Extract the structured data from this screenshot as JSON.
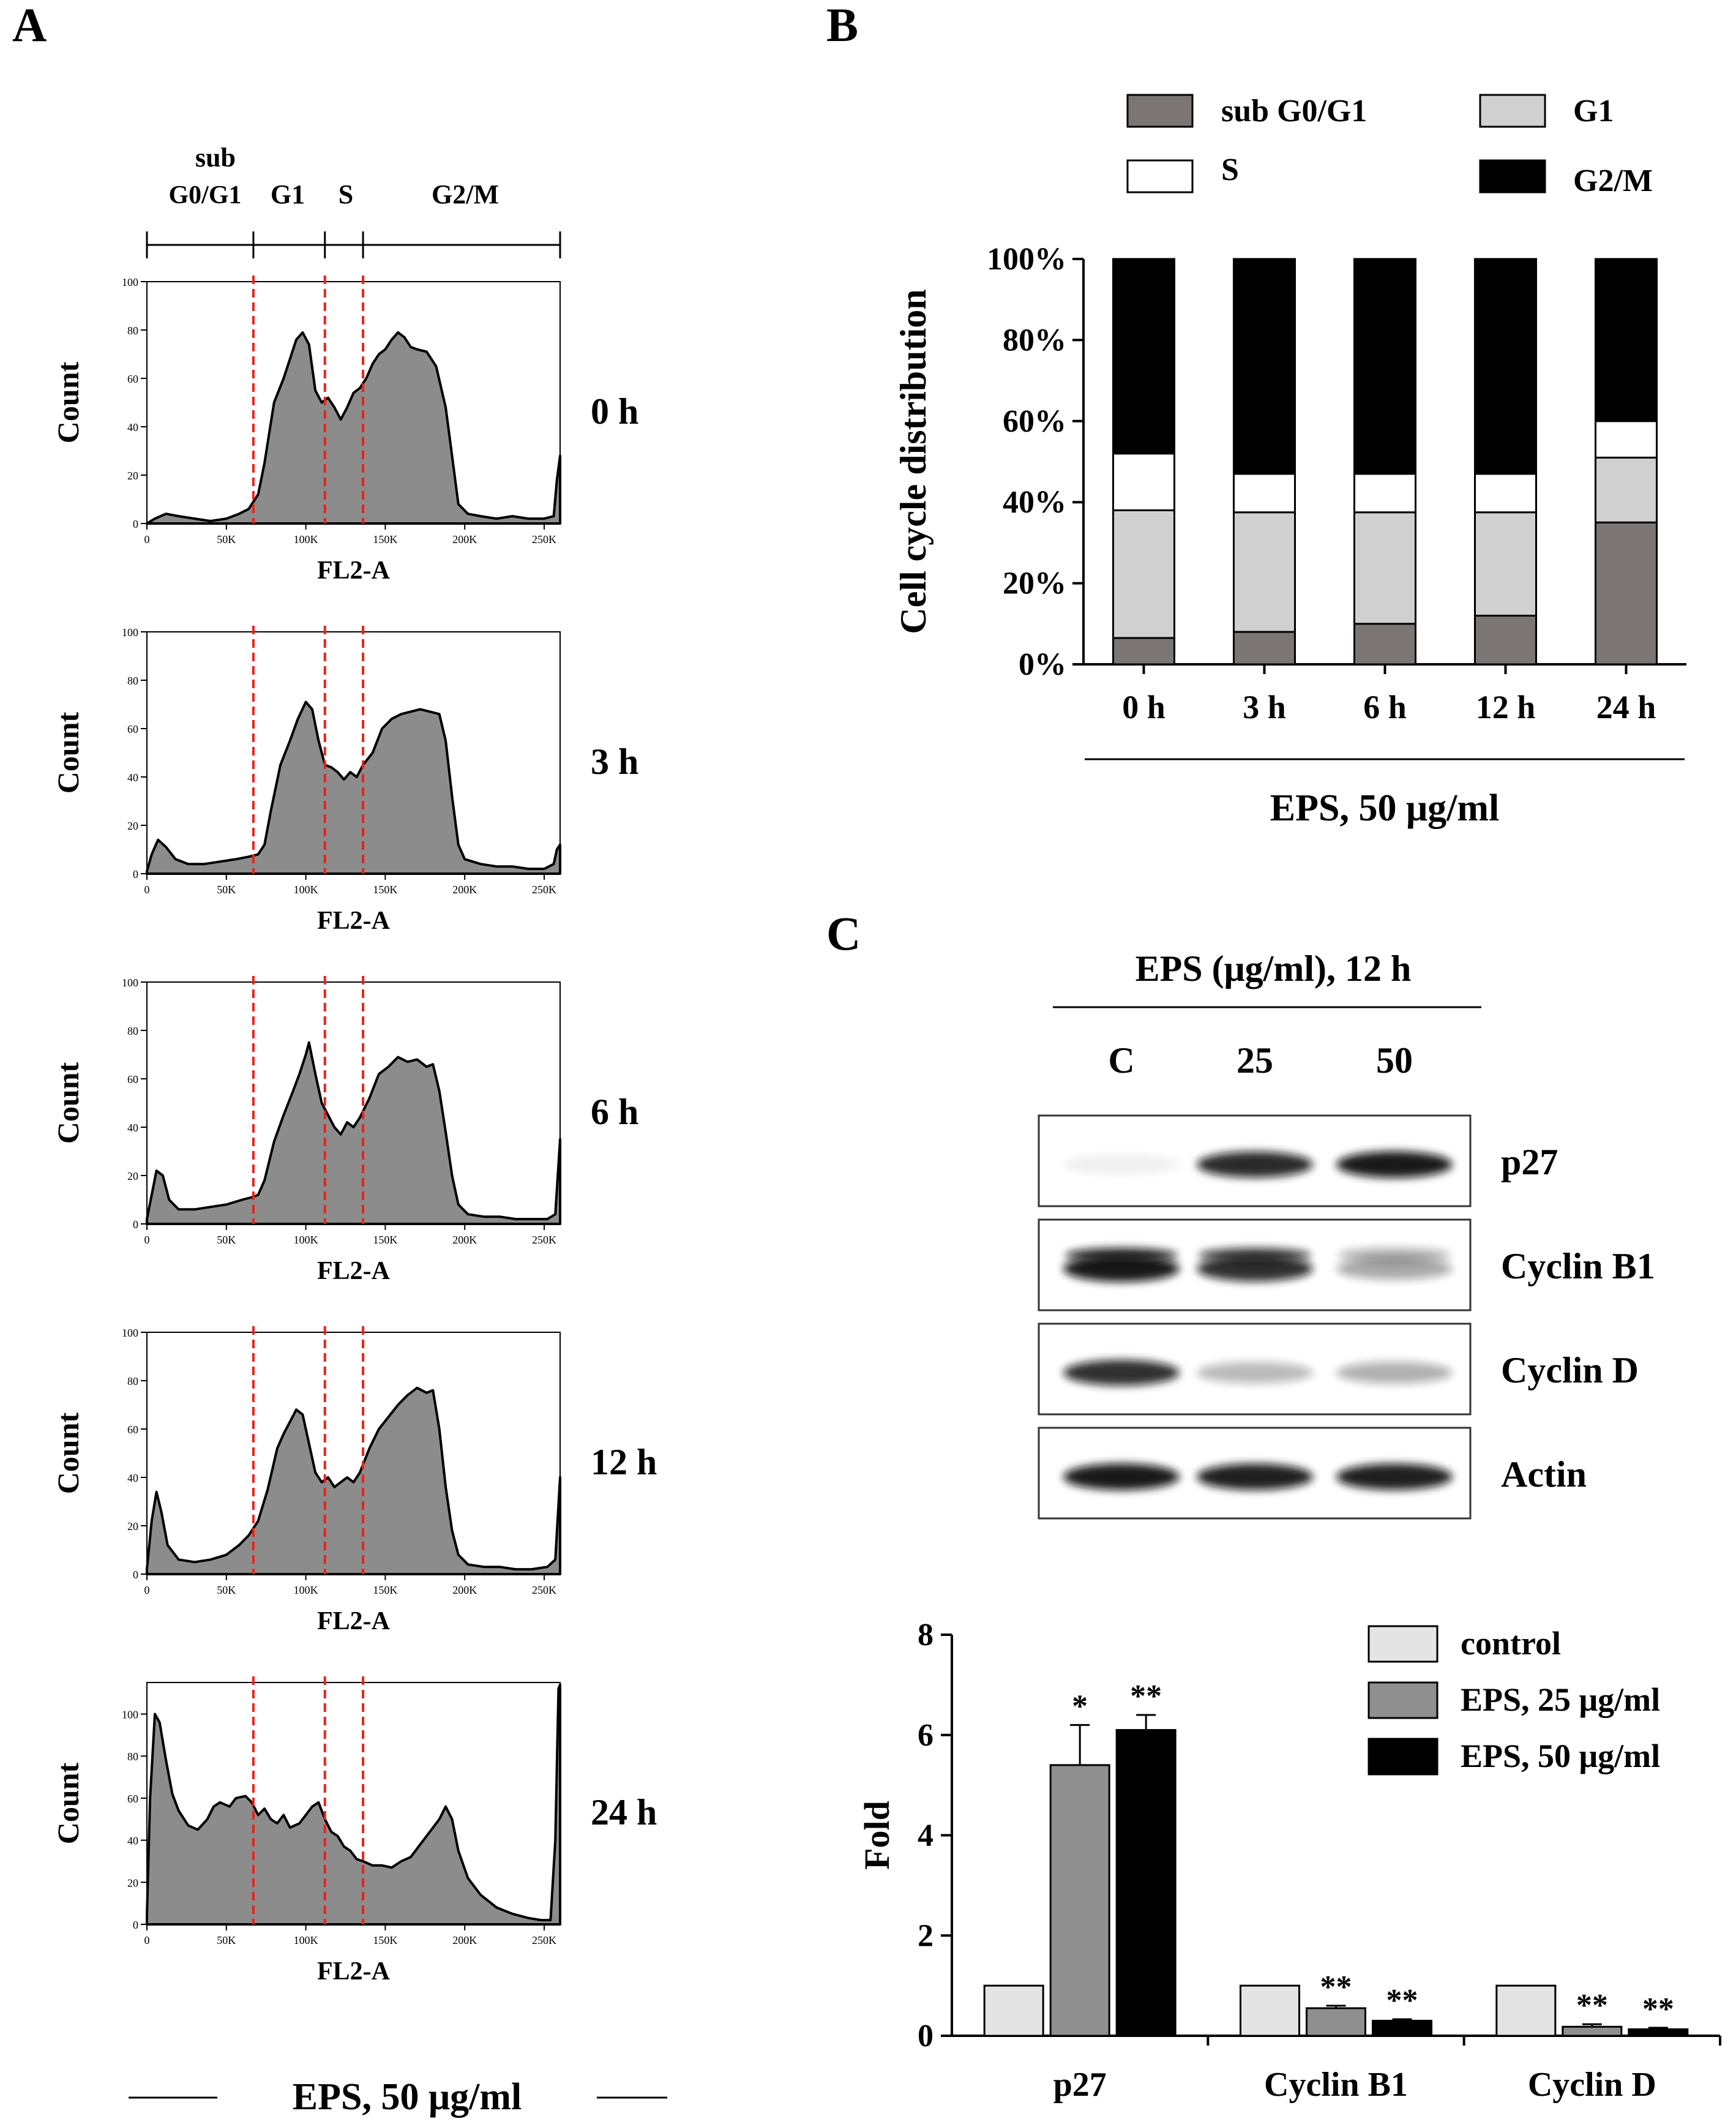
{
  "panels": {
    "a": "A",
    "b": "B",
    "c": "C"
  },
  "colors": {
    "hist_fill": "#8c8c8c",
    "marker_line": "#e8231c",
    "sub_g0g1": "#7b7575",
    "g1": "#d0d0d0",
    "s": "#ffffff",
    "g2m": "#000000",
    "control": "#e4e4e4",
    "eps25": "#8f8f8f",
    "eps50": "#000000"
  },
  "panel_a": {
    "gate_labels": {
      "sub_line1": "sub",
      "sub_line2": "G0/G1",
      "g1": "G1",
      "s": "S",
      "g2m": "G2/M"
    },
    "gates_k": [
      0,
      67,
      112,
      136,
      260
    ],
    "xlabel": "FL2-A",
    "ylabel": "Count",
    "xticks": [
      "0",
      "50K",
      "100K",
      "150K",
      "200K",
      "250K"
    ],
    "footer": "EPS, 50 μg/ml",
    "histograms": [
      {
        "label": "0 h",
        "yticks": [
          "0",
          "20",
          "40",
          "60",
          "80",
          "100"
        ],
        "ymax": 100,
        "points": [
          [
            0,
            0
          ],
          [
            5,
            2
          ],
          [
            12,
            4
          ],
          [
            20,
            3
          ],
          [
            30,
            2
          ],
          [
            40,
            1
          ],
          [
            50,
            2
          ],
          [
            58,
            4
          ],
          [
            64,
            6
          ],
          [
            70,
            12
          ],
          [
            74,
            25
          ],
          [
            80,
            50
          ],
          [
            86,
            60
          ],
          [
            90,
            68
          ],
          [
            94,
            76
          ],
          [
            98,
            79
          ],
          [
            102,
            74
          ],
          [
            106,
            55
          ],
          [
            110,
            50
          ],
          [
            114,
            52
          ],
          [
            118,
            48
          ],
          [
            122,
            43
          ],
          [
            126,
            48
          ],
          [
            130,
            54
          ],
          [
            134,
            56
          ],
          [
            138,
            60
          ],
          [
            142,
            66
          ],
          [
            146,
            70
          ],
          [
            150,
            72
          ],
          [
            154,
            76
          ],
          [
            158,
            79
          ],
          [
            162,
            77
          ],
          [
            166,
            73
          ],
          [
            170,
            72
          ],
          [
            176,
            71
          ],
          [
            182,
            65
          ],
          [
            188,
            48
          ],
          [
            192,
            28
          ],
          [
            196,
            8
          ],
          [
            202,
            4
          ],
          [
            210,
            3
          ],
          [
            220,
            2
          ],
          [
            230,
            3
          ],
          [
            240,
            2
          ],
          [
            250,
            2
          ],
          [
            256,
            3
          ],
          [
            258,
            18
          ],
          [
            260,
            28
          ]
        ]
      },
      {
        "label": "3 h",
        "yticks": [
          "0",
          "20",
          "40",
          "60",
          "80",
          "100"
        ],
        "ymax": 100,
        "points": [
          [
            0,
            1
          ],
          [
            3,
            8
          ],
          [
            7,
            14
          ],
          [
            12,
            11
          ],
          [
            18,
            6
          ],
          [
            26,
            4
          ],
          [
            36,
            4
          ],
          [
            46,
            5
          ],
          [
            56,
            6
          ],
          [
            64,
            7
          ],
          [
            70,
            8
          ],
          [
            74,
            12
          ],
          [
            78,
            26
          ],
          [
            84,
            45
          ],
          [
            90,
            55
          ],
          [
            95,
            64
          ],
          [
            100,
            71
          ],
          [
            104,
            68
          ],
          [
            108,
            55
          ],
          [
            112,
            45
          ],
          [
            116,
            44
          ],
          [
            120,
            42
          ],
          [
            124,
            39
          ],
          [
            128,
            42
          ],
          [
            132,
            40
          ],
          [
            136,
            45
          ],
          [
            142,
            50
          ],
          [
            148,
            60
          ],
          [
            154,
            64
          ],
          [
            160,
            66
          ],
          [
            166,
            67
          ],
          [
            172,
            68
          ],
          [
            178,
            67
          ],
          [
            184,
            66
          ],
          [
            188,
            55
          ],
          [
            192,
            32
          ],
          [
            196,
            12
          ],
          [
            200,
            6
          ],
          [
            210,
            4
          ],
          [
            220,
            3
          ],
          [
            230,
            3
          ],
          [
            240,
            2
          ],
          [
            250,
            2
          ],
          [
            256,
            4
          ],
          [
            258,
            10
          ],
          [
            260,
            12
          ]
        ]
      },
      {
        "label": "6 h",
        "yticks": [
          "0",
          "20",
          "40",
          "60",
          "80",
          "100"
        ],
        "ymax": 100,
        "points": [
          [
            0,
            2
          ],
          [
            3,
            12
          ],
          [
            6,
            22
          ],
          [
            10,
            20
          ],
          [
            14,
            10
          ],
          [
            20,
            6
          ],
          [
            30,
            6
          ],
          [
            40,
            7
          ],
          [
            50,
            8
          ],
          [
            60,
            10
          ],
          [
            66,
            11
          ],
          [
            70,
            12
          ],
          [
            74,
            18
          ],
          [
            80,
            34
          ],
          [
            86,
            45
          ],
          [
            92,
            55
          ],
          [
            96,
            62
          ],
          [
            100,
            70
          ],
          [
            102,
            75
          ],
          [
            106,
            62
          ],
          [
            110,
            50
          ],
          [
            114,
            45
          ],
          [
            118,
            40
          ],
          [
            122,
            37
          ],
          [
            126,
            42
          ],
          [
            130,
            40
          ],
          [
            134,
            44
          ],
          [
            140,
            52
          ],
          [
            146,
            62
          ],
          [
            152,
            65
          ],
          [
            158,
            69
          ],
          [
            164,
            67
          ],
          [
            170,
            68
          ],
          [
            176,
            65
          ],
          [
            180,
            66
          ],
          [
            184,
            55
          ],
          [
            188,
            38
          ],
          [
            192,
            20
          ],
          [
            196,
            8
          ],
          [
            202,
            4
          ],
          [
            212,
            3
          ],
          [
            222,
            3
          ],
          [
            232,
            2
          ],
          [
            242,
            2
          ],
          [
            252,
            2
          ],
          [
            257,
            4
          ],
          [
            260,
            35
          ]
        ]
      },
      {
        "label": "12 h",
        "yticks": [
          "0",
          "20",
          "40",
          "60",
          "80",
          "100"
        ],
        "ymax": 100,
        "points": [
          [
            0,
            2
          ],
          [
            3,
            22
          ],
          [
            6,
            34
          ],
          [
            9,
            26
          ],
          [
            13,
            12
          ],
          [
            20,
            6
          ],
          [
            30,
            5
          ],
          [
            40,
            6
          ],
          [
            50,
            8
          ],
          [
            58,
            12
          ],
          [
            64,
            16
          ],
          [
            70,
            22
          ],
          [
            76,
            35
          ],
          [
            82,
            52
          ],
          [
            86,
            58
          ],
          [
            90,
            63
          ],
          [
            94,
            68
          ],
          [
            98,
            66
          ],
          [
            102,
            54
          ],
          [
            106,
            42
          ],
          [
            110,
            38
          ],
          [
            114,
            40
          ],
          [
            118,
            36
          ],
          [
            122,
            38
          ],
          [
            126,
            40
          ],
          [
            130,
            38
          ],
          [
            134,
            42
          ],
          [
            140,
            52
          ],
          [
            146,
            60
          ],
          [
            152,
            65
          ],
          [
            158,
            70
          ],
          [
            164,
            74
          ],
          [
            170,
            77
          ],
          [
            176,
            75
          ],
          [
            180,
            76
          ],
          [
            184,
            60
          ],
          [
            188,
            36
          ],
          [
            192,
            18
          ],
          [
            196,
            8
          ],
          [
            202,
            4
          ],
          [
            212,
            3
          ],
          [
            222,
            3
          ],
          [
            232,
            2
          ],
          [
            242,
            2
          ],
          [
            252,
            3
          ],
          [
            257,
            6
          ],
          [
            260,
            40
          ]
        ]
      },
      {
        "label": "24 h",
        "yticks": [
          "0",
          "20",
          "40",
          "60",
          "80",
          "100"
        ],
        "ymax": 115,
        "points": [
          [
            0,
            4
          ],
          [
            2,
            60
          ],
          [
            5,
            100
          ],
          [
            8,
            96
          ],
          [
            12,
            78
          ],
          [
            16,
            62
          ],
          [
            20,
            54
          ],
          [
            26,
            47
          ],
          [
            32,
            45
          ],
          [
            38,
            50
          ],
          [
            42,
            56
          ],
          [
            46,
            58
          ],
          [
            52,
            56
          ],
          [
            56,
            60
          ],
          [
            62,
            61
          ],
          [
            66,
            58
          ],
          [
            70,
            52
          ],
          [
            74,
            55
          ],
          [
            78,
            50
          ],
          [
            82,
            48
          ],
          [
            86,
            52
          ],
          [
            90,
            46
          ],
          [
            96,
            48
          ],
          [
            100,
            52
          ],
          [
            104,
            56
          ],
          [
            108,
            58
          ],
          [
            112,
            50
          ],
          [
            116,
            44
          ],
          [
            120,
            42
          ],
          [
            124,
            37
          ],
          [
            128,
            35
          ],
          [
            132,
            31
          ],
          [
            136,
            30
          ],
          [
            142,
            28
          ],
          [
            148,
            28
          ],
          [
            154,
            27
          ],
          [
            160,
            30
          ],
          [
            166,
            32
          ],
          [
            172,
            38
          ],
          [
            178,
            44
          ],
          [
            184,
            50
          ],
          [
            188,
            56
          ],
          [
            192,
            50
          ],
          [
            196,
            35
          ],
          [
            202,
            22
          ],
          [
            210,
            14
          ],
          [
            220,
            8
          ],
          [
            230,
            5
          ],
          [
            240,
            3
          ],
          [
            248,
            2
          ],
          [
            254,
            2
          ],
          [
            257,
            40
          ],
          [
            259,
            112
          ],
          [
            260,
            114
          ]
        ]
      }
    ]
  },
  "panel_b": {
    "chart_data": {
      "type": "bar",
      "stacked": true,
      "categories": [
        "0 h",
        "3 h",
        "6 h",
        "12 h",
        "24 h"
      ],
      "series": [
        {
          "name": "sub G0/G1",
          "values": [
            6.5,
            8,
            10,
            12,
            35
          ]
        },
        {
          "name": "G1",
          "values": [
            31.5,
            29.5,
            27.5,
            25.5,
            16
          ]
        },
        {
          "name": "S",
          "values": [
            14,
            9.5,
            9.5,
            9.5,
            9
          ]
        },
        {
          "name": "G2/M",
          "values": [
            48,
            53,
            53,
            53,
            40
          ]
        }
      ],
      "ylabel": "Cell cycle distribution",
      "yticks": [
        "0%",
        "20%",
        "40%",
        "60%",
        "80%",
        "100%"
      ],
      "ylim": [
        0,
        100
      ],
      "xlabel": "EPS, 50 μg/ml",
      "legend": [
        "sub G0/G1",
        "G1",
        "S",
        "G2/M"
      ]
    }
  },
  "panel_c": {
    "blot_title": "EPS (μg/ml), 12 h",
    "lanes": [
      "C",
      "25",
      "50"
    ],
    "blot_rows": [
      {
        "label": "p27",
        "band_intensity": [
          0.06,
          0.88,
          0.95
        ]
      },
      {
        "label": "Cyclin B1",
        "band_intensity": [
          0.95,
          0.85,
          0.35
        ]
      },
      {
        "label": "Cyclin D",
        "band_intensity": [
          0.85,
          0.28,
          0.32
        ]
      },
      {
        "label": "Actin",
        "band_intensity": [
          0.95,
          0.92,
          0.92
        ]
      }
    ],
    "chart_data": {
      "type": "bar",
      "categories": [
        "p27",
        "Cyclin B1",
        "Cyclin D"
      ],
      "series": [
        {
          "name": "control",
          "values": [
            1,
            1,
            1
          ],
          "errors": [
            0,
            0,
            0
          ],
          "sig": [
            "",
            "",
            ""
          ]
        },
        {
          "name": "EPS, 25 μg/ml",
          "values": [
            5.4,
            0.55,
            0.18
          ],
          "errors": [
            0.8,
            0.05,
            0.05
          ],
          "sig": [
            "*",
            "**",
            "**"
          ]
        },
        {
          "name": "EPS, 50 μg/ml",
          "values": [
            6.1,
            0.3,
            0.13
          ],
          "errors": [
            0.3,
            0.03,
            0.03
          ],
          "sig": [
            "**",
            "**",
            "**"
          ]
        }
      ],
      "ylabel": "Fold",
      "yticks": [
        "0",
        "2",
        "4",
        "6",
        "8"
      ],
      "ylim": [
        0,
        8
      ]
    }
  }
}
